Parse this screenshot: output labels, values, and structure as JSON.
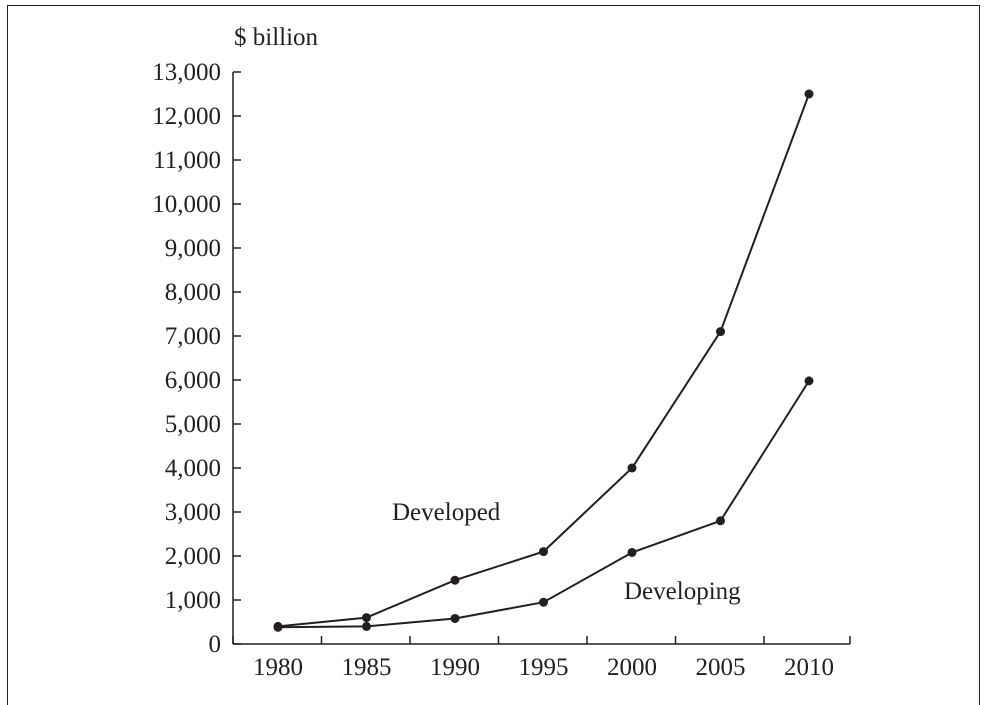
{
  "chart_data": {
    "type": "line",
    "y_unit_label": "$ billion",
    "x": [
      1980,
      1985,
      1990,
      1995,
      2000,
      2005,
      2010
    ],
    "x_tick_labels": [
      "1980",
      "1985",
      "1990",
      "1995",
      "2000",
      "2005",
      "2010"
    ],
    "y_tick_labels": [
      "0",
      "1,000",
      "2,000",
      "3,000",
      "4,000",
      "5,000",
      "6,000",
      "7,000",
      "8,000",
      "9,000",
      "10,000",
      "11,000",
      "12,000",
      "13,000"
    ],
    "ylim": [
      0,
      13000
    ],
    "grid": false,
    "legend": "none",
    "series": [
      {
        "name": "Developed",
        "values": [
          400,
          600,
          1450,
          2100,
          4000,
          7100,
          12500
        ]
      },
      {
        "name": "Developing",
        "values": [
          380,
          400,
          580,
          950,
          2080,
          2800,
          5980
        ]
      }
    ]
  }
}
